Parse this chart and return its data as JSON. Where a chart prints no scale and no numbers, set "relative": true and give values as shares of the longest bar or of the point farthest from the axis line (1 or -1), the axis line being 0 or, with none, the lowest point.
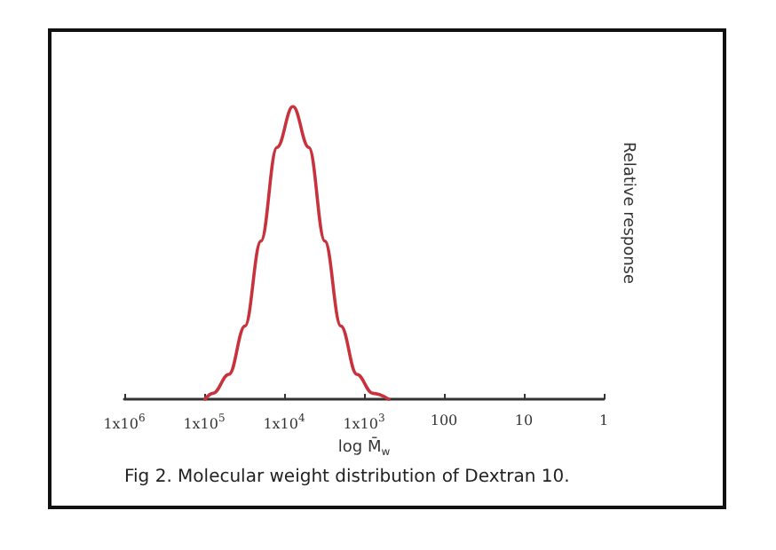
{
  "chart_data": {
    "type": "line",
    "relative": true,
    "xlabel": "log M̄$_{w}$",
    "ylabel": "Relative response",
    "annotations": [
      "Fig 2. Molecular weight distribution of Dextran 10."
    ],
    "log": "x",
    "xlim": [
      1000000,
      1
    ],
    "xticks": [
      {
        "value": 1000000,
        "label": "1x10$^{6}$"
      },
      {
        "value": 100000,
        "label": "1x10$^{5}$"
      },
      {
        "value": 10000,
        "label": "1x10$^{4}$"
      },
      {
        "value": 1000,
        "label": "1x10$^{3}$"
      },
      100,
      10,
      1
    ],
    "x": [
      97700,
      77600,
      49000,
      30900,
      19500,
      12300,
      7760,
      4900,
      3090,
      1950,
      1230,
      776,
      490
    ],
    "series": [
      {
        "color": "#c8323c",
        "values": [
          0,
          0.02,
          0.085,
          0.25,
          0.54,
          0.86,
          1,
          0.86,
          0.54,
          0.25,
          0.085,
          0.02,
          0
        ]
      }
    ],
    "marker": "none",
    "line_style": "solid"
  }
}
